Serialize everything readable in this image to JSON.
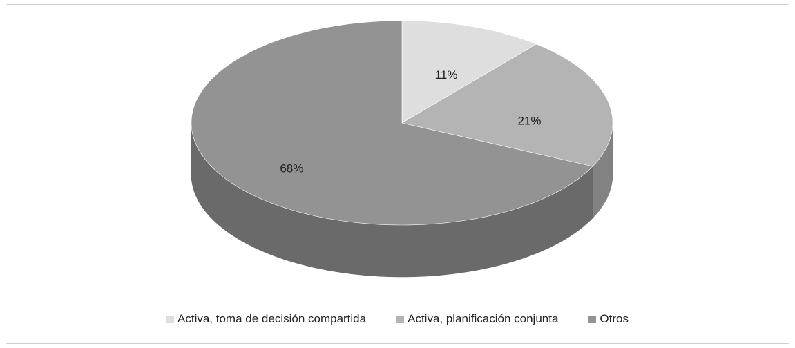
{
  "chart_data": {
    "type": "pie",
    "categories": [
      "Activa, toma de decisión compartida",
      "Activa, planificación conjunta",
      "Otros"
    ],
    "values": [
      11,
      21,
      68
    ],
    "value_labels": [
      "11%",
      "21%",
      "68%"
    ],
    "colors": [
      "#dedede",
      "#b4b4b4",
      "#939393"
    ],
    "legend": "bottom"
  }
}
